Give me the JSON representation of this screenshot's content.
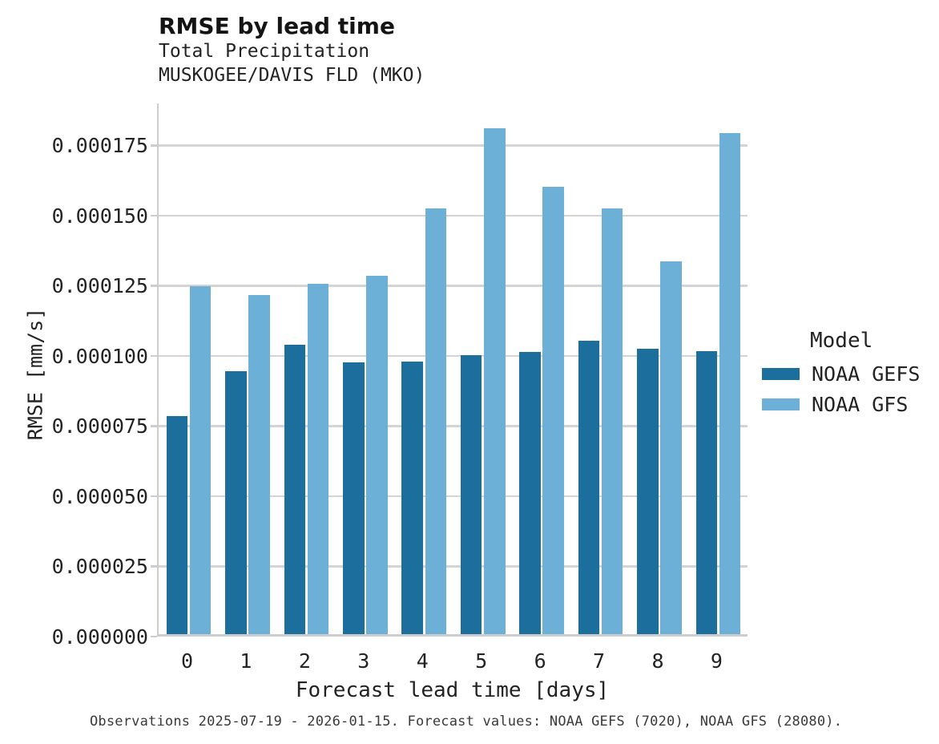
{
  "header": {
    "title": "RMSE by lead time",
    "subtitle_line1": "Total Precipitation",
    "subtitle_line2": "MUSKOGEE/DAVIS FLD (MKO)"
  },
  "chart_data": {
    "type": "bar",
    "title": "RMSE by lead time",
    "subtitle": "Total Precipitation — MUSKOGEE/DAVIS FLD (MKO)",
    "xlabel": "Forecast lead time [days]",
    "ylabel": "RMSE [mm/s]",
    "categories": [
      0,
      1,
      2,
      3,
      4,
      5,
      6,
      7,
      8,
      9
    ],
    "xtick_labels": [
      "0",
      "1",
      "2",
      "3",
      "4",
      "5",
      "6",
      "7",
      "8",
      "9"
    ],
    "series": [
      {
        "name": "NOAA GEFS",
        "color": "#1c6e9d",
        "values": [
          7.77e-05,
          9.38e-05,
          0.0001032,
          9.7e-05,
          9.72e-05,
          9.93e-05,
          0.0001005,
          0.0001046,
          0.0001017,
          0.0001009
        ]
      },
      {
        "name": "NOAA GFS",
        "color": "#6cb0d8",
        "values": [
          0.0001241,
          0.000121,
          0.000125,
          0.0001276,
          0.0001517,
          0.0001804,
          0.0001593,
          0.0001517,
          0.0001329,
          0.0001787
        ]
      }
    ],
    "ylim": [
      0,
      0.00019
    ],
    "ytick_values": [
      0,
      2.5e-05,
      5e-05,
      7.5e-05,
      0.0001,
      0.000125,
      0.00015,
      0.000175
    ],
    "ytick_labels": [
      "0.000000",
      "0.000025",
      "0.000050",
      "0.000075",
      "0.000100",
      "0.000125",
      "0.000150",
      "0.000175"
    ],
    "grid": "horizontal",
    "legend_title": "Model",
    "legend_position": "right"
  },
  "legend": {
    "title": "Model",
    "entries": [
      {
        "label": "NOAA GEFS",
        "color": "#1c6e9d"
      },
      {
        "label": "NOAA GFS",
        "color": "#6cb0d8"
      }
    ]
  },
  "footer": {
    "caption": "Observations 2025-07-19 - 2026-01-15. Forecast values: NOAA GEFS (7020), NOAA GFS (28080)."
  },
  "colors": {
    "series_dark": "#1c6e9d",
    "series_light": "#6cb0d8",
    "gridline": "#d4d4d4",
    "axis_spine": "#cdcdcd",
    "text": "#232323",
    "background": "#ffffff"
  }
}
